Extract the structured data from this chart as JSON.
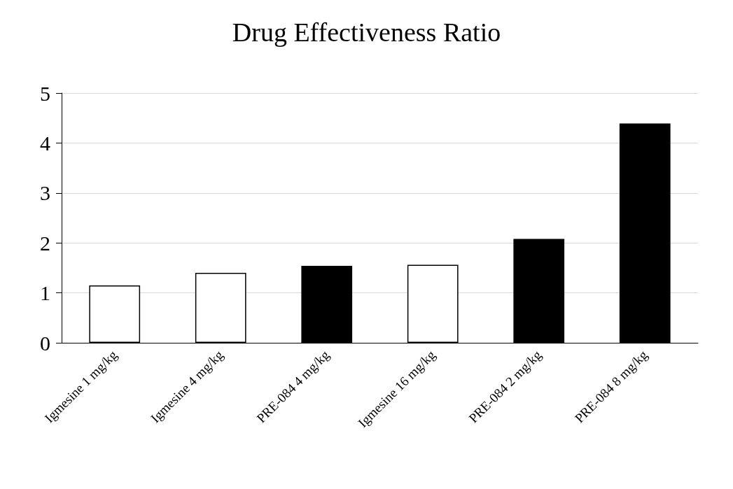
{
  "chart_data": {
    "type": "bar",
    "title": "Drug Effectiveness Ratio",
    "categories": [
      "Igmesine 1 mg/kg",
      "Igmesine 4 mg/kg",
      "PRE-084 4 mg/kg",
      "Igmesine 16 mg/kg",
      "PRE-084 2 mg/kg",
      "PRE-084 8 mg/kg"
    ],
    "values": [
      1.15,
      1.4,
      1.54,
      1.56,
      2.08,
      4.39
    ],
    "colors": [
      "#ffffff",
      "#ffffff",
      "#000000",
      "#ffffff",
      "#000000",
      "#000000"
    ],
    "ylim": [
      0,
      5
    ],
    "yticks": [
      0,
      1,
      2,
      3,
      4,
      5
    ],
    "grid": "y"
  }
}
